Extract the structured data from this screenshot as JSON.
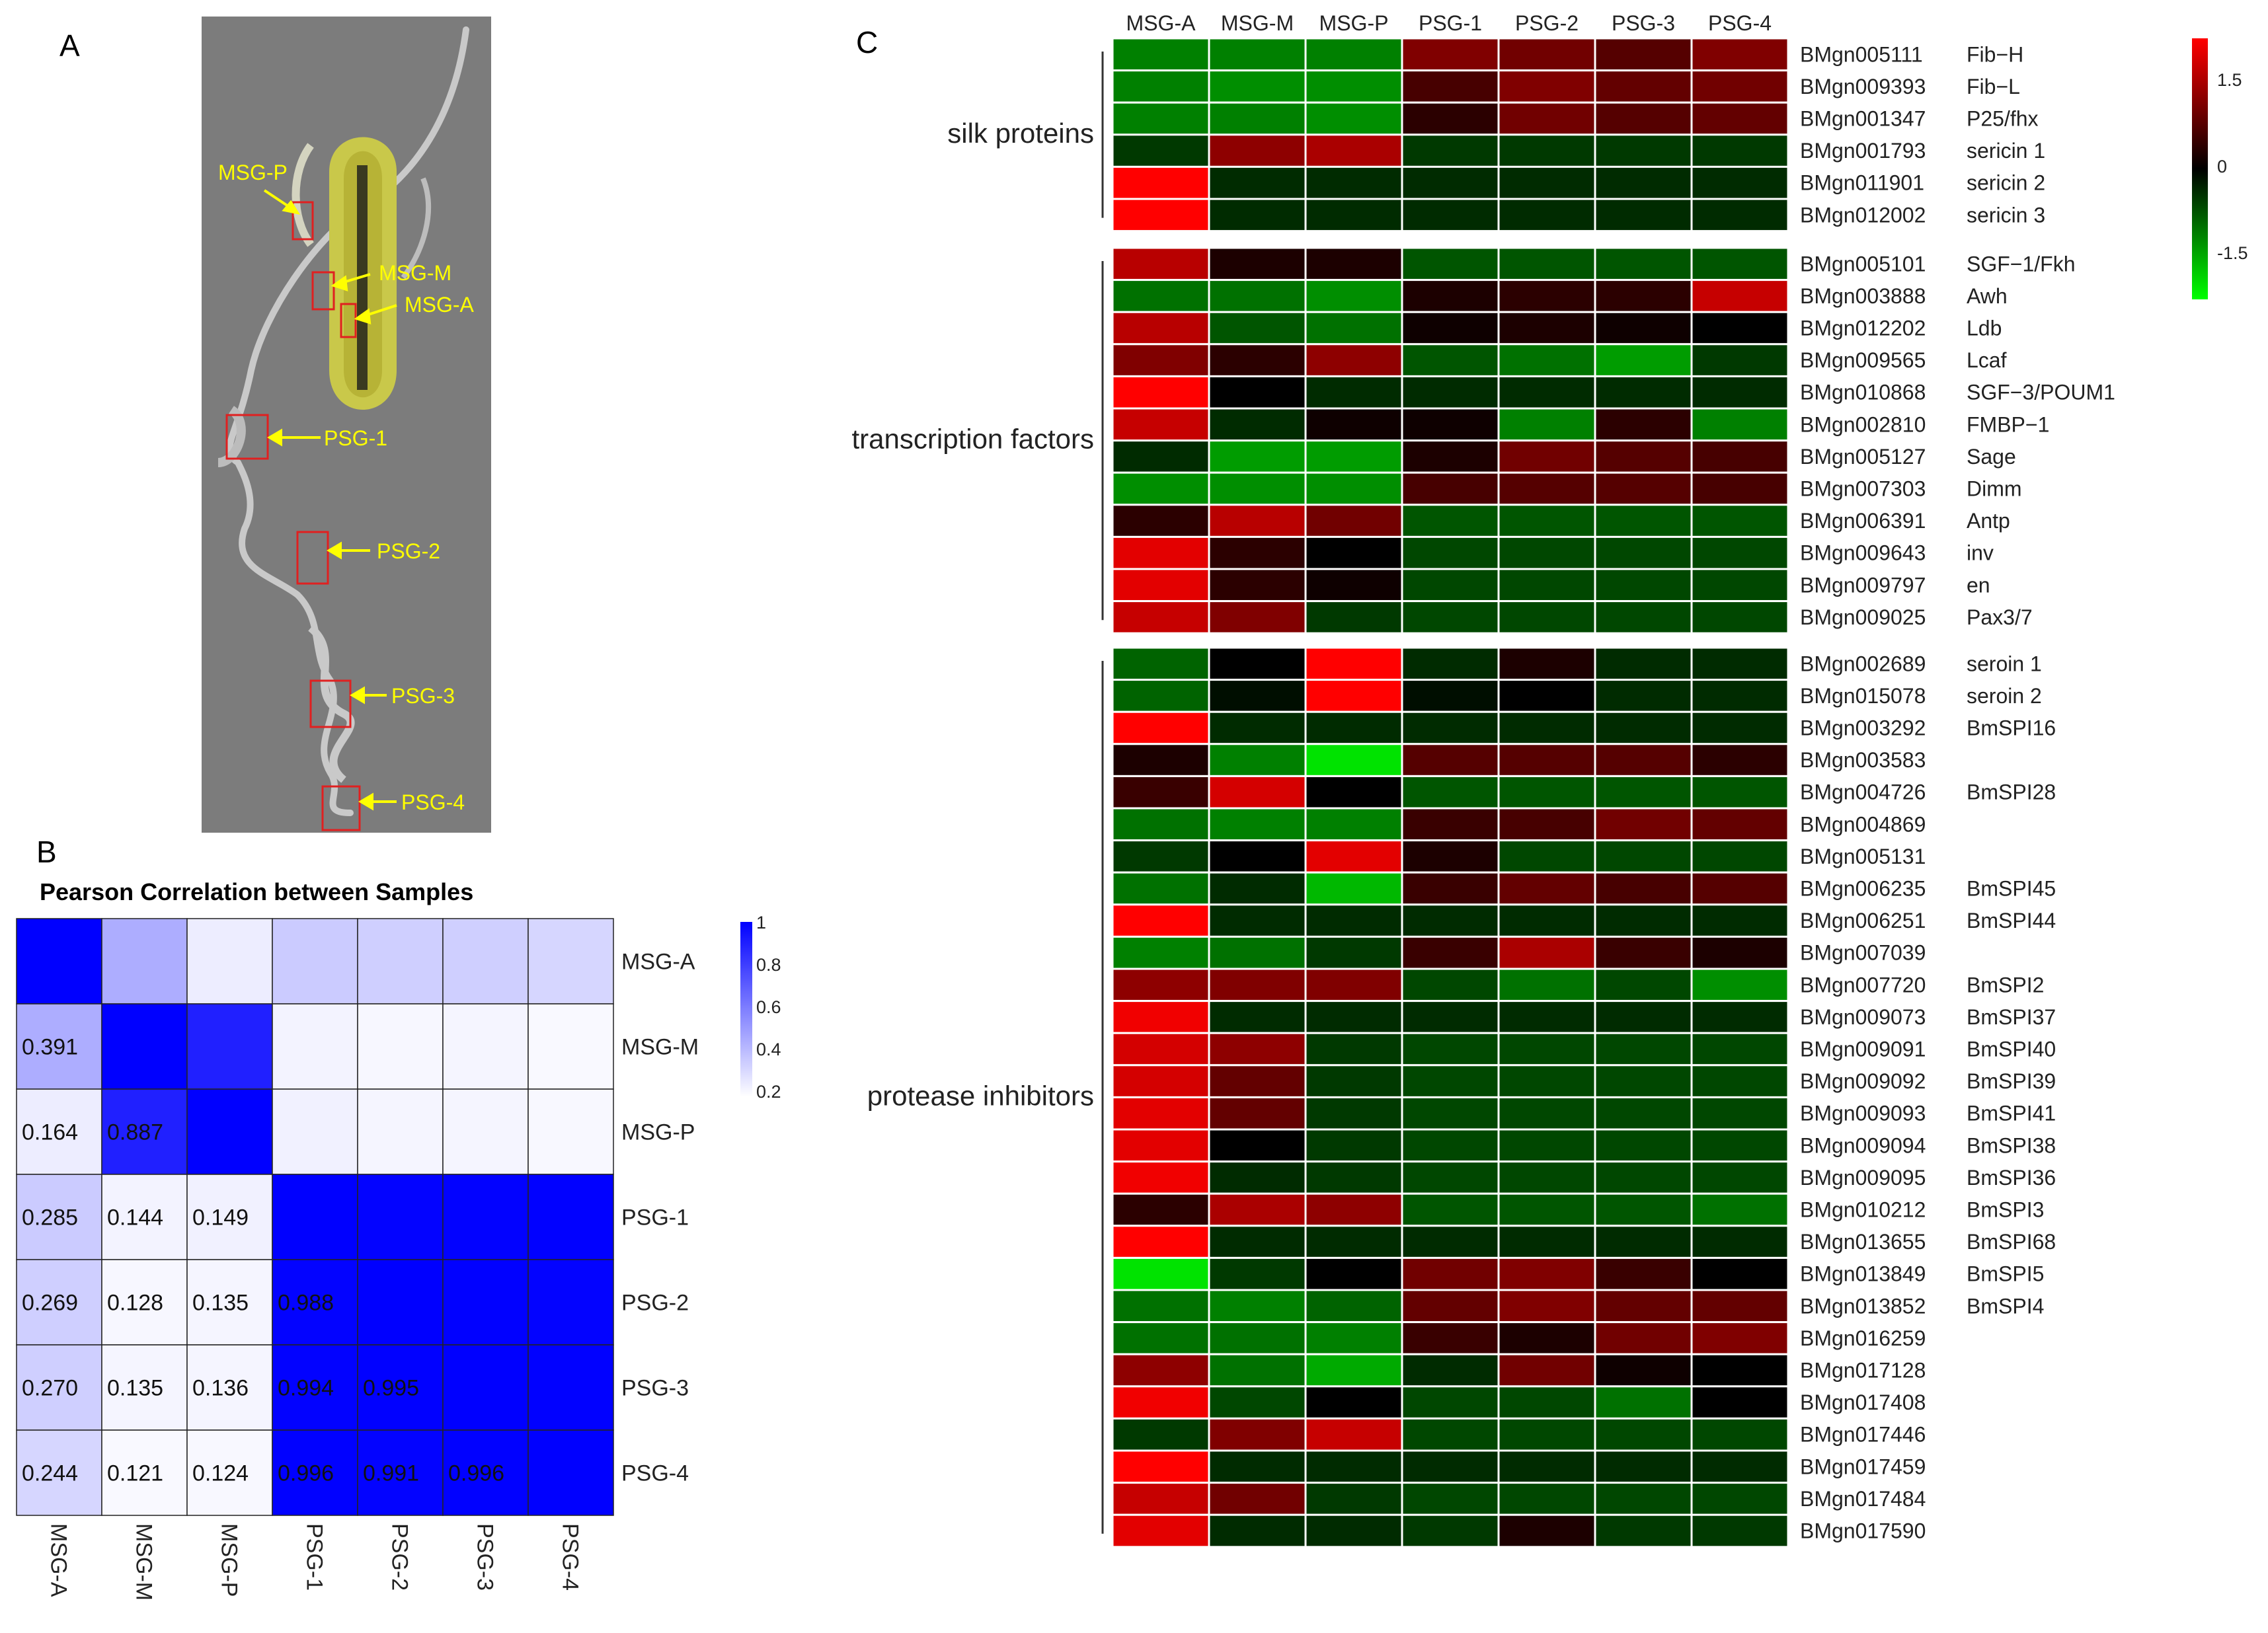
{
  "panel_a": {
    "label": "A",
    "segments": [
      "MSG-A",
      "MSG-M",
      "MSG-P",
      "PSG-1",
      "PSG-2",
      "PSG-3",
      "PSG-4"
    ],
    "label_color": "#ffff00",
    "box_color": "#e02020"
  },
  "panel_b": {
    "label": "B",
    "title": "Pearson Correlation between Samples",
    "colorbar_ticks": [
      "1",
      "0.8",
      "0.6",
      "0.4",
      "0.2"
    ],
    "colors": {
      "high": "#0000ff",
      "low": "#ffffff"
    }
  },
  "panel_c": {
    "label": "C",
    "colorbar_ticks": [
      "1.5",
      "0",
      "-1.5"
    ],
    "colors": {
      "high": "#ff0000",
      "mid": "#000000",
      "low": "#00ff00"
    }
  },
  "chart_data": [
    {
      "type": "heatmap",
      "title": "Pearson Correlation between Samples",
      "samples": [
        "MSG-A",
        "MSG-M",
        "MSG-P",
        "PSG-1",
        "PSG-2",
        "PSG-3",
        "PSG-4"
      ],
      "values": [
        [
          1.0,
          0.391,
          0.164,
          0.285,
          0.269,
          0.27,
          0.244
        ],
        [
          0.391,
          1.0,
          0.887,
          0.144,
          0.128,
          0.135,
          0.121
        ],
        [
          0.164,
          0.887,
          1.0,
          0.149,
          0.135,
          0.136,
          0.124
        ],
        [
          0.285,
          0.144,
          0.149,
          1.0,
          0.988,
          0.994,
          0.996
        ],
        [
          0.269,
          0.128,
          0.135,
          0.988,
          1.0,
          0.995,
          0.991
        ],
        [
          0.27,
          0.135,
          0.136,
          0.994,
          0.995,
          1.0,
          0.996
        ],
        [
          0.244,
          0.121,
          0.124,
          0.996,
          0.991,
          0.996,
          1.0
        ]
      ],
      "labels_shown": "lower-triangle",
      "labels": [
        [
          "",
          "",
          "",
          "",
          "",
          "",
          ""
        ],
        [
          "0.391",
          "",
          "",
          "",
          "",
          "",
          ""
        ],
        [
          "0.164",
          "0.887",
          "",
          "",
          "",
          "",
          ""
        ],
        [
          "0.285",
          "0.144",
          "0.149",
          "",
          "",
          "",
          ""
        ],
        [
          "0.269",
          "0.128",
          "0.135",
          "0.988",
          "",
          "",
          ""
        ],
        [
          "0.270",
          "0.135",
          "0.136",
          "0.994",
          "0.995",
          "",
          ""
        ],
        [
          "0.244",
          "0.121",
          "0.124",
          "0.996",
          "0.991",
          "0.996",
          ""
        ]
      ],
      "color_range": [
        0.1,
        1
      ]
    },
    {
      "type": "heatmap",
      "columns": [
        "MSG-A",
        "MSG-M",
        "MSG-P",
        "PSG-1",
        "PSG-2",
        "PSG-3",
        "PSG-4"
      ],
      "color_range": [
        -1.8,
        1.8
      ],
      "groups": [
        {
          "name": "silk proteins",
          "rows": [
            {
              "id": "BMgn005111",
              "name": "Fib−H",
              "values": [
                -0.9,
                -0.9,
                -0.9,
                0.9,
                0.8,
                0.6,
                0.9
              ]
            },
            {
              "id": "BMgn009393",
              "name": "Fib−L",
              "values": [
                -0.9,
                -1.0,
                -1.0,
                0.5,
                0.9,
                0.7,
                0.8
              ]
            },
            {
              "id": "BMgn001347",
              "name": "P25/fhx",
              "values": [
                -0.9,
                -0.9,
                -1.0,
                0.3,
                0.8,
                0.6,
                0.7
              ]
            },
            {
              "id": "BMgn001793",
              "name": "sericin 1",
              "values": [
                -0.4,
                1.0,
                1.2,
                -0.4,
                -0.4,
                -0.4,
                -0.4
              ]
            },
            {
              "id": "BMgn011901",
              "name": "sericin 2",
              "values": [
                1.8,
                -0.3,
                -0.3,
                -0.3,
                -0.3,
                -0.3,
                -0.3
              ]
            },
            {
              "id": "BMgn012002",
              "name": "sericin 3",
              "values": [
                1.8,
                -0.3,
                -0.3,
                -0.3,
                -0.3,
                -0.3,
                -0.3
              ]
            }
          ]
        },
        {
          "name": "transcription factors",
          "rows": [
            {
              "id": "BMgn005101",
              "name": "SGF−1/Fkh",
              "values": [
                1.3,
                0.2,
                0.2,
                -0.6,
                -0.6,
                -0.6,
                -0.6
              ]
            },
            {
              "id": "BMgn003888",
              "name": "Awh",
              "values": [
                -0.8,
                -0.8,
                -1.0,
                0.2,
                0.3,
                0.3,
                1.4
              ]
            },
            {
              "id": "BMgn012202",
              "name": "Ldb",
              "values": [
                1.3,
                -0.6,
                -0.8,
                0.1,
                0.2,
                0.1,
                0.0
              ]
            },
            {
              "id": "BMgn009565",
              "name": "Lcaf",
              "values": [
                0.9,
                0.3,
                1.0,
                -0.6,
                -0.8,
                -1.1,
                -0.4
              ]
            },
            {
              "id": "BMgn010868",
              "name": "SGF−3/POUM1",
              "values": [
                1.8,
                0.0,
                -0.3,
                -0.3,
                -0.3,
                -0.3,
                -0.3
              ]
            },
            {
              "id": "BMgn002810",
              "name": "FMBP−1",
              "values": [
                1.4,
                -0.3,
                0.1,
                0.1,
                -0.9,
                0.3,
                -0.9
              ]
            },
            {
              "id": "BMgn005127",
              "name": "Sage",
              "values": [
                -0.3,
                -1.1,
                -1.1,
                0.2,
                0.8,
                0.6,
                0.5
              ]
            },
            {
              "id": "BMgn007303",
              "name": "Dimm",
              "values": [
                -1.0,
                -1.0,
                -1.0,
                0.5,
                0.6,
                0.6,
                0.5
              ]
            },
            {
              "id": "BMgn006391",
              "name": "Antp",
              "values": [
                0.3,
                1.3,
                0.8,
                -0.6,
                -0.6,
                -0.6,
                -0.6
              ]
            },
            {
              "id": "BMgn009643",
              "name": "inv",
              "values": [
                1.6,
                0.3,
                0.0,
                -0.5,
                -0.5,
                -0.5,
                -0.5
              ]
            },
            {
              "id": "BMgn009797",
              "name": "en",
              "values": [
                1.6,
                0.3,
                0.1,
                -0.5,
                -0.5,
                -0.5,
                -0.5
              ]
            },
            {
              "id": "BMgn009025",
              "name": "Pax3/7",
              "values": [
                1.4,
                0.9,
                -0.4,
                -0.5,
                -0.5,
                -0.5,
                -0.5
              ]
            }
          ]
        },
        {
          "name": "protease inhibitors",
          "rows": [
            {
              "id": "BMgn002689",
              "name": "seroin 1",
              "values": [
                -0.7,
                0.0,
                1.8,
                -0.3,
                0.2,
                -0.3,
                -0.3
              ]
            },
            {
              "id": "BMgn015078",
              "name": "seroin 2",
              "values": [
                -0.7,
                -0.1,
                1.8,
                -0.1,
                0.0,
                -0.3,
                -0.3
              ]
            },
            {
              "id": "BMgn003292",
              "name": "BmSPI16",
              "values": [
                1.8,
                -0.3,
                -0.3,
                -0.3,
                -0.3,
                -0.3,
                -0.3
              ]
            },
            {
              "id": "BMgn003583",
              "name": "",
              "values": [
                0.2,
                -0.9,
                -1.6,
                0.6,
                0.6,
                0.6,
                0.3
              ]
            },
            {
              "id": "BMgn004726",
              "name": "BmSPI28",
              "values": [
                0.4,
                1.5,
                0.0,
                -0.6,
                -0.6,
                -0.6,
                -0.6
              ]
            },
            {
              "id": "BMgn004869",
              "name": "",
              "values": [
                -0.8,
                -0.9,
                -0.9,
                0.4,
                0.5,
                0.8,
                0.7
              ]
            },
            {
              "id": "BMgn005131",
              "name": "",
              "values": [
                -0.4,
                0.0,
                1.6,
                0.2,
                -0.5,
                -0.5,
                -0.5
              ]
            },
            {
              "id": "BMgn006235",
              "name": "BmSPI45",
              "values": [
                -0.8,
                -0.3,
                -1.3,
                0.4,
                0.7,
                0.5,
                0.6
              ]
            },
            {
              "id": "BMgn006251",
              "name": "BmSPI44",
              "values": [
                1.8,
                -0.3,
                -0.3,
                -0.3,
                -0.3,
                -0.3,
                -0.3
              ]
            },
            {
              "id": "BMgn007039",
              "name": "",
              "values": [
                -0.9,
                -0.8,
                -0.4,
                0.4,
                1.2,
                0.4,
                0.2
              ]
            },
            {
              "id": "BMgn007720",
              "name": "BmSPI2",
              "values": [
                1.0,
                0.9,
                0.9,
                -0.5,
                -0.8,
                -0.5,
                -1.0
              ]
            },
            {
              "id": "BMgn009073",
              "name": "BmSPI37",
              "values": [
                1.7,
                -0.3,
                -0.3,
                -0.3,
                -0.3,
                -0.3,
                -0.3
              ]
            },
            {
              "id": "BMgn009091",
              "name": "BmSPI40",
              "values": [
                1.5,
                1.0,
                -0.4,
                -0.5,
                -0.5,
                -0.5,
                -0.5
              ]
            },
            {
              "id": "BMgn009092",
              "name": "BmSPI39",
              "values": [
                1.5,
                0.7,
                -0.4,
                -0.5,
                -0.5,
                -0.5,
                -0.5
              ]
            },
            {
              "id": "BMgn009093",
              "name": "BmSPI41",
              "values": [
                1.6,
                0.7,
                -0.4,
                -0.5,
                -0.5,
                -0.5,
                -0.5
              ]
            },
            {
              "id": "BMgn009094",
              "name": "BmSPI38",
              "values": [
                1.6,
                0.0,
                -0.4,
                -0.5,
                -0.5,
                -0.5,
                -0.5
              ]
            },
            {
              "id": "BMgn009095",
              "name": "BmSPI36",
              "values": [
                1.7,
                -0.3,
                -0.4,
                -0.5,
                -0.5,
                -0.5,
                -0.5
              ]
            },
            {
              "id": "BMgn010212",
              "name": "BmSPI3",
              "values": [
                0.3,
                1.2,
                1.0,
                -0.6,
                -0.6,
                -0.6,
                -0.8
              ]
            },
            {
              "id": "BMgn013655",
              "name": "BmSPI68",
              "values": [
                1.8,
                -0.3,
                -0.3,
                -0.3,
                -0.3,
                -0.3,
                -0.3
              ]
            },
            {
              "id": "BMgn013849",
              "name": "BmSPI5",
              "values": [
                -1.6,
                -0.4,
                0.0,
                0.8,
                0.9,
                0.4,
                0.0
              ]
            },
            {
              "id": "BMgn013852",
              "name": "BmSPI4",
              "values": [
                -0.8,
                -0.9,
                -0.7,
                0.7,
                0.9,
                0.7,
                0.7
              ]
            },
            {
              "id": "BMgn016259",
              "name": "",
              "values": [
                -0.8,
                -0.8,
                -0.9,
                0.4,
                0.2,
                0.8,
                0.9
              ]
            },
            {
              "id": "BMgn017128",
              "name": "",
              "values": [
                1.0,
                -0.8,
                -1.2,
                -0.3,
                0.8,
                0.1,
                0.0
              ]
            },
            {
              "id": "BMgn017408",
              "name": "",
              "values": [
                1.7,
                -0.5,
                0.0,
                -0.5,
                -0.5,
                -0.8,
                0.0
              ]
            },
            {
              "id": "BMgn017446",
              "name": "",
              "values": [
                -0.4,
                0.9,
                1.4,
                -0.5,
                -0.5,
                -0.5,
                -0.5
              ]
            },
            {
              "id": "BMgn017459",
              "name": "",
              "values": [
                1.8,
                -0.3,
                -0.3,
                -0.3,
                -0.3,
                -0.3,
                -0.3
              ]
            },
            {
              "id": "BMgn017484",
              "name": "",
              "values": [
                1.4,
                0.8,
                -0.4,
                -0.5,
                -0.5,
                -0.5,
                -0.5
              ]
            },
            {
              "id": "BMgn017590",
              "name": "",
              "values": [
                1.6,
                -0.3,
                -0.3,
                -0.4,
                0.2,
                -0.4,
                -0.4
              ]
            }
          ]
        }
      ]
    }
  ]
}
